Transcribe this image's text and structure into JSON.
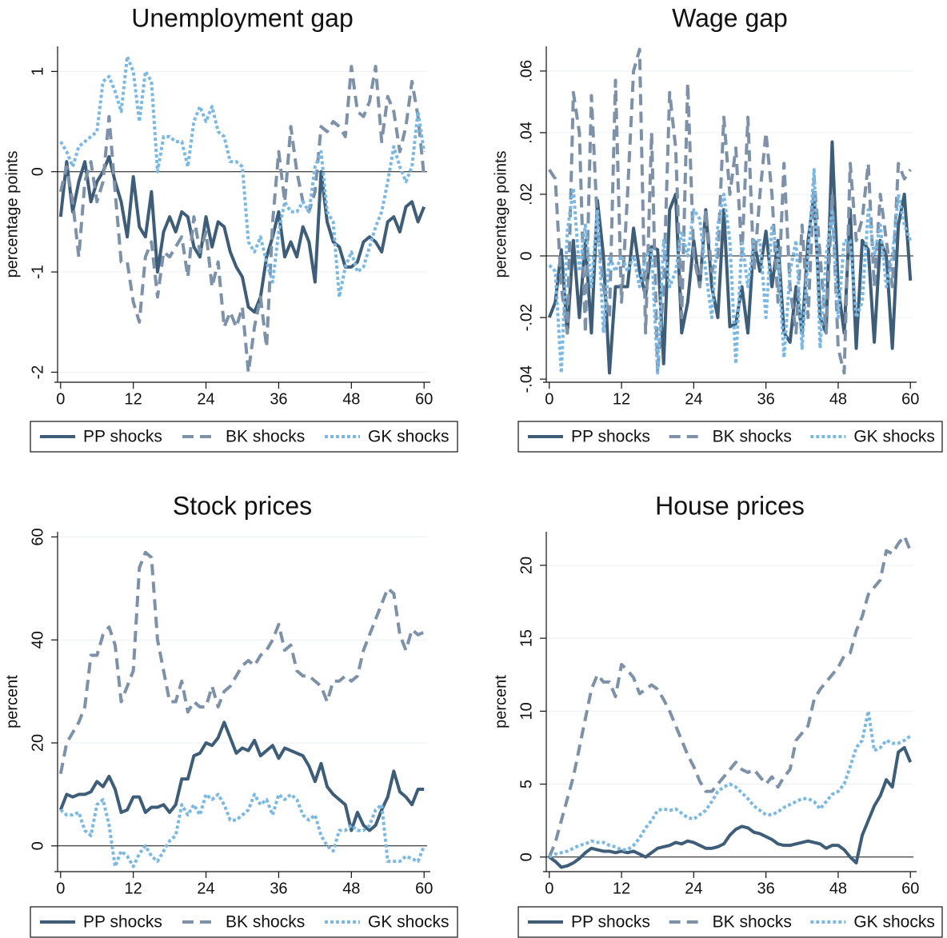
{
  "chart_data": [
    {
      "type": "line",
      "title": "Unemployment gap",
      "ylabel": "percentage points",
      "x": [
        0,
        1,
        2,
        3,
        4,
        5,
        6,
        7,
        8,
        9,
        10,
        11,
        12,
        13,
        14,
        15,
        16,
        17,
        18,
        19,
        20,
        21,
        22,
        23,
        24,
        25,
        26,
        27,
        28,
        29,
        30,
        31,
        32,
        33,
        34,
        35,
        36,
        37,
        38,
        39,
        40,
        41,
        42,
        43,
        44,
        45,
        46,
        47,
        48,
        49,
        50,
        51,
        52,
        53,
        54,
        55,
        56,
        57,
        58,
        59,
        60
      ],
      "xlim": [
        -0.5,
        60.5
      ],
      "xticks": [
        0,
        12,
        24,
        36,
        48,
        60
      ],
      "ylim": [
        -2.1,
        1.25
      ],
      "yticks": [
        -2,
        -1,
        0,
        1
      ],
      "grid": true,
      "hline": 0,
      "legend": "bottom",
      "series": [
        {
          "name": "PP shocks",
          "color": "#3d5d78",
          "style": "solid",
          "values": [
            -0.45,
            0.1,
            -0.4,
            -0.1,
            0.1,
            -0.3,
            -0.1,
            0,
            0.15,
            -0.1,
            -0.3,
            -0.65,
            -0.05,
            -0.55,
            -0.65,
            -0.2,
            -1.0,
            -0.6,
            -0.45,
            -0.6,
            -0.4,
            -0.45,
            -0.75,
            -0.85,
            -0.45,
            -0.75,
            -0.5,
            -0.55,
            -0.8,
            -0.95,
            -1.05,
            -1.35,
            -1.4,
            -1.25,
            -0.85,
            -0.65,
            -0.4,
            -0.85,
            -0.7,
            -0.85,
            -0.55,
            -0.7,
            -1.1,
            0,
            -0.5,
            -0.7,
            -0.75,
            -0.95,
            -0.95,
            -0.9,
            -0.7,
            -0.65,
            -0.7,
            -0.8,
            -0.5,
            -0.45,
            -0.6,
            -0.35,
            -0.3,
            -0.5,
            -0.35
          ]
        },
        {
          "name": "BK shocks",
          "color": "#7d91a9",
          "style": "dash",
          "values": [
            -0.2,
            0.05,
            -0.3,
            -0.85,
            -0.1,
            0.1,
            -0.3,
            -0.1,
            0.55,
            -0.2,
            -0.9,
            -0.9,
            -1.3,
            -1.5,
            -0.85,
            -0.7,
            -1.25,
            -0.8,
            -0.85,
            -0.75,
            -0.65,
            -1.05,
            -0.45,
            -0.8,
            -0.6,
            -1.15,
            -0.9,
            -1.55,
            -1.4,
            -1.55,
            -1.35,
            -2.0,
            -1.55,
            -1.25,
            -1.75,
            -0.5,
            0.2,
            -0.3,
            0.45,
            0,
            -0.3,
            -0.4,
            -0.2,
            0.45,
            0.4,
            0.5,
            0.45,
            0.35,
            1.05,
            0.6,
            0.55,
            0.7,
            1.05,
            0.3,
            0.75,
            0.6,
            0.2,
            0.45,
            0.9,
            0.55,
            -0.05
          ]
        },
        {
          "name": "GK shocks",
          "color": "#7bb9e3",
          "style": "dot",
          "values": [
            0.3,
            0.2,
            0.05,
            0.25,
            0.3,
            0.35,
            0.4,
            0.9,
            0.95,
            0.8,
            0.6,
            1.15,
            1.0,
            0.5,
            1.0,
            0.9,
            0,
            0.35,
            0.35,
            0.3,
            0.3,
            0.05,
            0.5,
            0.65,
            0.5,
            0.65,
            0.4,
            0.35,
            0.1,
            0.1,
            0.05,
            -0.7,
            -0.8,
            -0.65,
            -0.9,
            -1.1,
            -0.6,
            -0.3,
            -0.4,
            -0.4,
            -0.3,
            -0.4,
            0.05,
            0.2,
            -0.4,
            -0.5,
            -1.25,
            -0.95,
            -0.8,
            -1.0,
            -0.95,
            -0.75,
            -0.55,
            -0.4,
            -0.1,
            0.25,
            0.05,
            -0.1,
            0.05,
            0.6,
            0.2
          ]
        }
      ]
    },
    {
      "type": "line",
      "title": "Wage gap",
      "ylabel": "percentage points",
      "x": [
        0,
        1,
        2,
        3,
        4,
        5,
        6,
        7,
        8,
        9,
        10,
        11,
        12,
        13,
        14,
        15,
        16,
        17,
        18,
        19,
        20,
        21,
        22,
        23,
        24,
        25,
        26,
        27,
        28,
        29,
        30,
        31,
        32,
        33,
        34,
        35,
        36,
        37,
        38,
        39,
        40,
        41,
        42,
        43,
        44,
        45,
        46,
        47,
        48,
        49,
        50,
        51,
        52,
        53,
        54,
        55,
        56,
        57,
        58,
        59,
        60
      ],
      "xlim": [
        -0.5,
        60.5
      ],
      "xticks": [
        0,
        12,
        24,
        36,
        48,
        60
      ],
      "ylim": [
        -0.041,
        0.068
      ],
      "yticks": [
        {
          "value": -0.04,
          "label": "-.04"
        },
        {
          "value": -0.02,
          "label": "-.02"
        },
        0,
        {
          "value": 0.02,
          "label": ".02"
        },
        {
          "value": 0.04,
          "label": ".04"
        },
        {
          "value": 0.06,
          "label": ".06"
        }
      ],
      "grid": true,
      "hline": 0,
      "legend": "bottom",
      "series": [
        {
          "name": "PP shocks",
          "color": "#3d5d78",
          "style": "solid",
          "values": [
            -0.02,
            -0.015,
            0.002,
            -0.025,
            0.005,
            -0.02,
            0.005,
            -0.025,
            0.018,
            0,
            -0.038,
            -0.01,
            -0.01,
            -0.01,
            0.009,
            -0.005,
            -0.013,
            0.003,
            0.002,
            -0.035,
            0.015,
            0.02,
            -0.025,
            -0.015,
            0.005,
            -0.01,
            0.015,
            -0.01,
            -0.02,
            0.015,
            -0.023,
            -0.022,
            -0.01,
            -0.025,
            0.005,
            -0.005,
            0.008,
            -0.01,
            0.005,
            -0.025,
            -0.028,
            -0.01,
            -0.025,
            0.005,
            0.02,
            -0.02,
            -0.025,
            0.037,
            -0.01,
            -0.025,
            0.015,
            -0.03,
            0.005,
            0.002,
            -0.028,
            0.005,
            0,
            -0.03,
            0.01,
            0.02,
            -0.008
          ]
        },
        {
          "name": "BK shocks",
          "color": "#7d91a9",
          "style": "dash",
          "values": [
            0.028,
            0.025,
            -0.01,
            -0.025,
            0.053,
            0.04,
            -0.025,
            0.052,
            0.01,
            -0.01,
            -0.02,
            0.057,
            -0.015,
            0.02,
            0.06,
            0.067,
            -0.025,
            0.04,
            -0.038,
            -0.01,
            0.053,
            0.035,
            -0.02,
            0.056,
            0,
            -0.01,
            0.015,
            -0.005,
            0,
            0.045,
            0.02,
            0.035,
            0,
            0.045,
            -0.005,
            0.02,
            0.04,
            0.02,
            -0.015,
            0.03,
            -0.01,
            -0.025,
            0.01,
            -0.02,
            0.025,
            0,
            -0.025,
            0.02,
            -0.03,
            -0.038,
            0.03,
            0.005,
            0.012,
            0.03,
            -0.01,
            0.02,
            0.005,
            -0.01,
            0.03,
            0.025,
            0.028
          ]
        },
        {
          "name": "GK shocks",
          "color": "#7bb9e3",
          "style": "dot",
          "values": [
            -0.003,
            -0.005,
            -0.038,
            0.008,
            0.022,
            -0.005,
            0.01,
            -0.01,
            0.015,
            -0.025,
            0,
            -0.005,
            0,
            -0.005,
            0,
            -0.01,
            0,
            0.002,
            -0.038,
            0.005,
            -0.01,
            -0.005,
            0.008,
            0,
            0.015,
            0.012,
            -0.005,
            -0.02,
            0.01,
            0.02,
            0.005,
            -0.035,
            0.005,
            -0.01,
            0.005,
            0.005,
            -0.02,
            0.01,
            0,
            -0.033,
            -0.005,
            0.005,
            -0.03,
            0,
            0.028,
            -0.03,
            0,
            0.015,
            -0.02,
            0.005,
            0.005,
            -0.02,
            -0.015,
            0.015,
            0,
            0.01,
            -0.01,
            0,
            0.02,
            0.01,
            0.005
          ]
        }
      ]
    },
    {
      "type": "line",
      "title": "Stock prices",
      "ylabel": "percent",
      "x": [
        0,
        1,
        2,
        3,
        4,
        5,
        6,
        7,
        8,
        9,
        10,
        11,
        12,
        13,
        14,
        15,
        16,
        17,
        18,
        19,
        20,
        21,
        22,
        23,
        24,
        25,
        26,
        27,
        28,
        29,
        30,
        31,
        32,
        33,
        34,
        35,
        36,
        37,
        38,
        39,
        40,
        41,
        42,
        43,
        44,
        45,
        46,
        47,
        48,
        49,
        50,
        51,
        52,
        53,
        54,
        55,
        56,
        57,
        58,
        59,
        60
      ],
      "xlim": [
        -0.5,
        60.5
      ],
      "xticks": [
        0,
        12,
        24,
        36,
        48,
        60
      ],
      "ylim": [
        -5,
        61
      ],
      "yticks": [
        0,
        20,
        40,
        60
      ],
      "grid": true,
      "hline": 0,
      "legend": "bottom",
      "series": [
        {
          "name": "PP shocks",
          "color": "#3d5d78",
          "style": "solid",
          "values": [
            7,
            10,
            9.5,
            10,
            10,
            10.5,
            12.5,
            11.5,
            13.5,
            11,
            6.5,
            7,
            9.5,
            9.5,
            6.5,
            7.5,
            7.5,
            8,
            6.5,
            8,
            13,
            13,
            17.5,
            18,
            20,
            19.5,
            21,
            24,
            21,
            18,
            19,
            18.5,
            20.5,
            17.5,
            18.5,
            19.5,
            17,
            19,
            18.5,
            18,
            17.5,
            15.5,
            12.5,
            16,
            11.5,
            10,
            9,
            8,
            3,
            6.5,
            4,
            3,
            4,
            7,
            9.5,
            14.5,
            10.5,
            9.5,
            8,
            11,
            11
          ]
        },
        {
          "name": "BK shocks",
          "color": "#7d91a9",
          "style": "dash",
          "values": [
            14,
            20,
            22,
            24,
            27,
            37,
            37,
            41,
            42.5,
            39,
            28,
            31,
            34,
            54,
            57,
            56,
            40,
            34,
            28,
            28,
            32,
            26,
            28,
            27,
            27,
            31,
            27,
            30,
            31,
            33,
            35,
            36,
            35,
            37,
            38,
            40,
            43,
            38,
            39,
            34,
            33,
            33,
            32,
            31,
            28,
            32,
            32,
            33,
            32,
            33,
            38,
            41,
            44,
            47,
            50,
            49,
            41,
            38,
            42,
            41,
            41.5
          ]
        },
        {
          "name": "GK shocks",
          "color": "#7bb9e3",
          "style": "dot",
          "values": [
            7,
            6,
            6,
            6.5,
            3,
            2,
            8,
            9,
            4,
            -4,
            -1,
            -2,
            -4,
            -1.5,
            0,
            -2,
            -3,
            -1,
            1,
            2,
            8,
            6,
            8,
            6,
            10,
            9,
            10,
            8,
            5,
            5,
            6,
            7,
            10,
            8,
            9,
            6,
            10,
            9,
            10,
            9,
            6,
            5,
            6,
            2,
            0,
            -1,
            3,
            3,
            4,
            3,
            3,
            4,
            7,
            8,
            -3,
            -3,
            -3,
            -2,
            -2.5,
            -3,
            0
          ]
        }
      ]
    },
    {
      "type": "line",
      "title": "House prices",
      "ylabel": "percent",
      "x": [
        0,
        1,
        2,
        3,
        4,
        5,
        6,
        7,
        8,
        9,
        10,
        11,
        12,
        13,
        14,
        15,
        16,
        17,
        18,
        19,
        20,
        21,
        22,
        23,
        24,
        25,
        26,
        27,
        28,
        29,
        30,
        31,
        32,
        33,
        34,
        35,
        36,
        37,
        38,
        39,
        40,
        41,
        42,
        43,
        44,
        45,
        46,
        47,
        48,
        49,
        50,
        51,
        52,
        53,
        54,
        55,
        56,
        57,
        58,
        59,
        60
      ],
      "xlim": [
        -0.5,
        60.5
      ],
      "xticks": [
        0,
        12,
        24,
        36,
        48,
        60
      ],
      "ylim": [
        -1,
        22.3
      ],
      "yticks": [
        0,
        5,
        10,
        15,
        20
      ],
      "grid": true,
      "hline": 0,
      "legend": "bottom",
      "series": [
        {
          "name": "PP shocks",
          "color": "#3d5d78",
          "style": "solid",
          "values": [
            0,
            -0.3,
            -0.7,
            -0.6,
            -0.4,
            -0.1,
            0.3,
            0.6,
            0.5,
            0.4,
            0.4,
            0.3,
            0.4,
            0.3,
            0.4,
            0.2,
            0,
            0.3,
            0.6,
            0.7,
            0.8,
            1.0,
            0.9,
            1.1,
            1.0,
            0.8,
            0.6,
            0.6,
            0.7,
            0.9,
            1.5,
            1.9,
            2.1,
            2.0,
            1.7,
            1.6,
            1.4,
            1.2,
            0.9,
            0.8,
            0.8,
            0.9,
            1.0,
            1.1,
            1.0,
            0.9,
            0.6,
            0.8,
            0.8,
            0.5,
            0,
            -0.4,
            1.5,
            2.5,
            3.5,
            4.2,
            5.3,
            4.8,
            7.2,
            7.5,
            6.5
          ]
        },
        {
          "name": "BK shocks",
          "color": "#7d91a9",
          "style": "dash",
          "values": [
            0,
            1,
            2.5,
            4,
            5.5,
            7.5,
            9.5,
            11.5,
            12.5,
            12,
            12,
            11,
            13.2,
            12.8,
            12.3,
            11.2,
            11.5,
            11.8,
            11.5,
            10.8,
            10,
            9,
            8,
            7,
            6.2,
            5.2,
            4.5,
            4.5,
            5,
            5.5,
            6,
            6.5,
            6,
            5.8,
            6,
            5.5,
            5,
            5.5,
            4.8,
            5.5,
            6,
            8,
            8.5,
            9,
            10.8,
            11.5,
            12,
            12.5,
            13,
            13.8,
            14,
            15.5,
            16.5,
            18,
            18.5,
            19,
            21,
            20.8,
            21.5,
            22,
            21
          ]
        },
        {
          "name": "GK shocks",
          "color": "#7bb9e3",
          "style": "dot",
          "values": [
            0,
            0.2,
            0.3,
            0.4,
            0.6,
            0.8,
            0.9,
            1.1,
            1.0,
            1.0,
            0.8,
            0.7,
            0.5,
            0.5,
            0.8,
            1.3,
            2.0,
            2.5,
            3.2,
            3.3,
            3.2,
            3.3,
            3.0,
            2.7,
            2.6,
            2.9,
            3.2,
            3.8,
            4.5,
            4.8,
            5.0,
            4.8,
            4.4,
            4.0,
            3.5,
            3.2,
            2.9,
            2.9,
            3.1,
            3.4,
            3.6,
            3.8,
            4.0,
            4.0,
            3.8,
            3.3,
            3.8,
            4.3,
            4.5,
            5.0,
            6.2,
            7.5,
            8.0,
            10.0,
            7.3,
            7.5,
            8.0,
            7.8,
            7.8,
            8.0,
            8.3
          ]
        }
      ]
    }
  ]
}
